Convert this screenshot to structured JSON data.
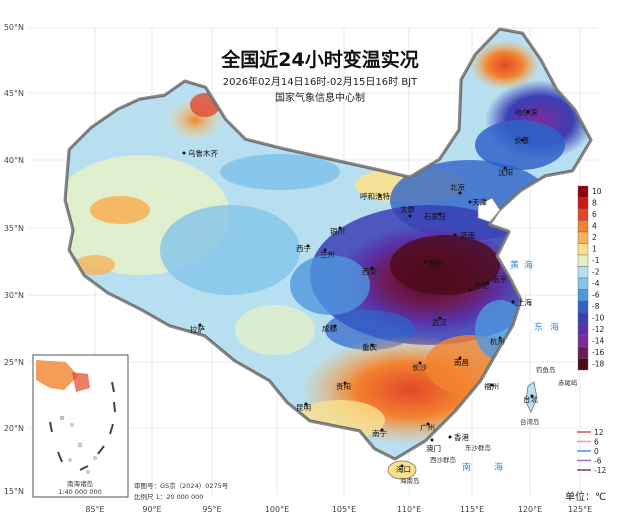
{
  "header": {
    "title": "全国近24小时变温实况",
    "time_range": "2026年02月14日16时-02月15日16时 BJT",
    "issuer": "国家气象信息中心制"
  },
  "axes": {
    "lat_labels": [
      "50°N",
      "45°N",
      "40°N",
      "35°N",
      "30°N",
      "25°N",
      "20°N",
      "15°N"
    ],
    "lon_labels": [
      "85°E",
      "90°E",
      "95°E",
      "100°E",
      "105°E",
      "110°E",
      "115°E",
      "120°E",
      "125°E"
    ]
  },
  "cities": [
    {
      "name": "哈尔滨"
    },
    {
      "name": "长春"
    },
    {
      "name": "沈阳"
    },
    {
      "name": "乌鲁木齐"
    },
    {
      "name": "呼和浩特"
    },
    {
      "name": "北京"
    },
    {
      "name": "天津"
    },
    {
      "name": "石家庄"
    },
    {
      "name": "太原"
    },
    {
      "name": "银川"
    },
    {
      "name": "济南"
    },
    {
      "name": "西宁"
    },
    {
      "name": "兰州"
    },
    {
      "name": "郑州"
    },
    {
      "name": "西安"
    },
    {
      "name": "合肥"
    },
    {
      "name": "南京"
    },
    {
      "name": "上海"
    },
    {
      "name": "拉萨"
    },
    {
      "name": "成都"
    },
    {
      "name": "武汉"
    },
    {
      "name": "杭州"
    },
    {
      "name": "重庆"
    },
    {
      "name": "长沙"
    },
    {
      "name": "南昌"
    },
    {
      "name": "福州"
    },
    {
      "name": "贵阳"
    },
    {
      "name": "台北"
    },
    {
      "name": "昆明"
    },
    {
      "name": "南宁"
    },
    {
      "name": "广州"
    },
    {
      "name": "香港"
    },
    {
      "name": "澳门"
    },
    {
      "name": "海口"
    },
    {
      "name": "台湾岛"
    },
    {
      "name": "钓鱼岛"
    },
    {
      "name": "赤尾屿"
    },
    {
      "name": "东沙群岛"
    },
    {
      "name": "西沙群岛"
    },
    {
      "name": "海南岛"
    }
  ],
  "seas": [
    {
      "name": "黄"
    },
    {
      "name": "海"
    },
    {
      "name": "东"
    },
    {
      "name": "海"
    },
    {
      "name": "南"
    },
    {
      "name": "海"
    }
  ],
  "inset": {
    "title": "南海诸岛",
    "scale": "1:40 000 000"
  },
  "footer": {
    "review_no": "审图号：GS京（2024）0275号",
    "scale": "比例尺 1：20 000 000",
    "unit": "单位：℃"
  },
  "legend": {
    "classes": [
      {
        "label": "10",
        "color": "#8c0012"
      },
      {
        "label": "8",
        "color": "#c81a18"
      },
      {
        "label": "6",
        "color": "#e3472b"
      },
      {
        "label": "4",
        "color": "#f2832e"
      },
      {
        "label": "2",
        "color": "#f7b35a"
      },
      {
        "label": "1",
        "color": "#fbe08c"
      },
      {
        "label": "-1",
        "color": "#e3f0c8"
      },
      {
        "label": "-2",
        "color": "#b8dfef"
      },
      {
        "label": "-4",
        "color": "#83c4ea"
      },
      {
        "label": "-6",
        "color": "#4f97dd"
      },
      {
        "label": "-8",
        "color": "#2f63c9"
      },
      {
        "label": "-10",
        "color": "#3a3fb4"
      },
      {
        "label": "-12",
        "color": "#5a31a6"
      },
      {
        "label": "-14",
        "color": "#7d2a98"
      },
      {
        "label": "-16",
        "color": "#6e1a55"
      },
      {
        "label": "-18",
        "color": "#4c0a18"
      }
    ],
    "isolines": [
      {
        "label": "12",
        "color": "#e05050"
      },
      {
        "label": "6",
        "color": "#f39a9a"
      },
      {
        "label": "0",
        "color": "#5090e0"
      },
      {
        "label": "-6",
        "color": "#a070c0"
      },
      {
        "label": "-12",
        "color": "#7a4050"
      }
    ]
  }
}
